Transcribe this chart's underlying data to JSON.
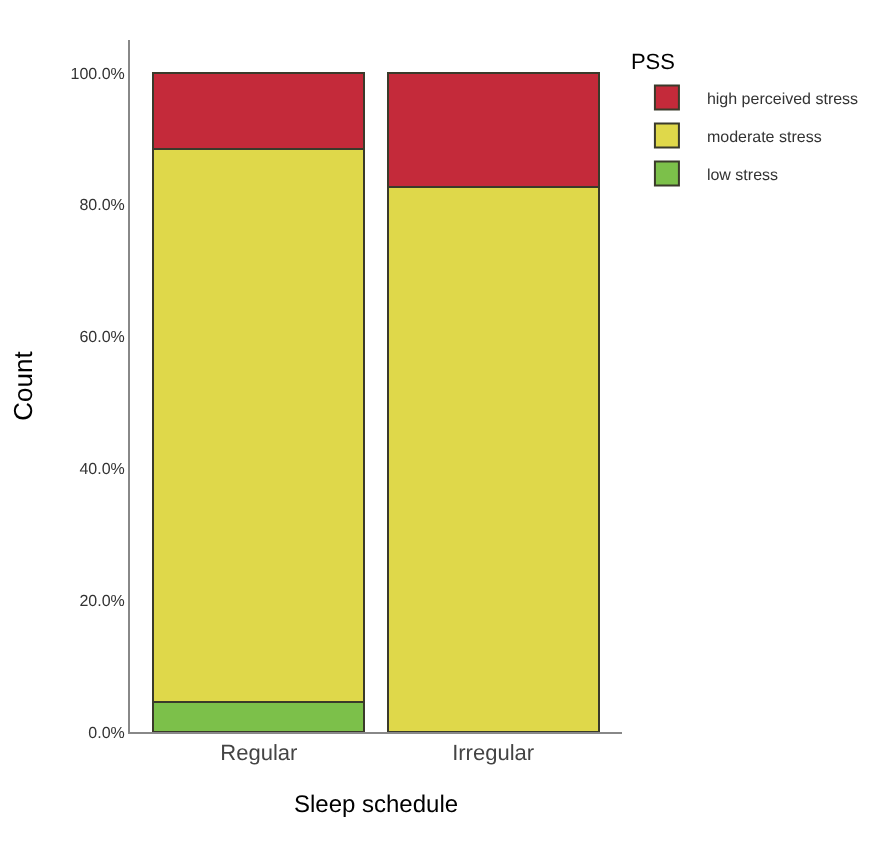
{
  "chart_data": {
    "type": "bar",
    "stacked": true,
    "xlabel": "Sleep schedule",
    "ylabel": "Count",
    "legend_title": "PSS",
    "legend": "top right",
    "categories": [
      "Regular",
      "Irregular"
    ],
    "series": [
      {
        "name": "low stress",
        "color": "#7cc04a",
        "values": [
          4.5,
          0
        ]
      },
      {
        "name": "moderate stress",
        "color": "#dfd84a",
        "values": [
          84.0,
          82.7
        ]
      },
      {
        "name": "high perceived stress",
        "color": "#c42a3a",
        "values": [
          11.5,
          17.3
        ]
      }
    ],
    "ylim": [
      0,
      105
    ],
    "yticks": [
      {
        "value": 0,
        "label": "0.0%"
      },
      {
        "value": 20,
        "label": "20.0%"
      },
      {
        "value": 40,
        "label": "40.0%"
      },
      {
        "value": 60,
        "label": "60.0%"
      },
      {
        "value": 80,
        "label": "80.0%"
      },
      {
        "value": 100,
        "label": "100.0%"
      }
    ]
  }
}
